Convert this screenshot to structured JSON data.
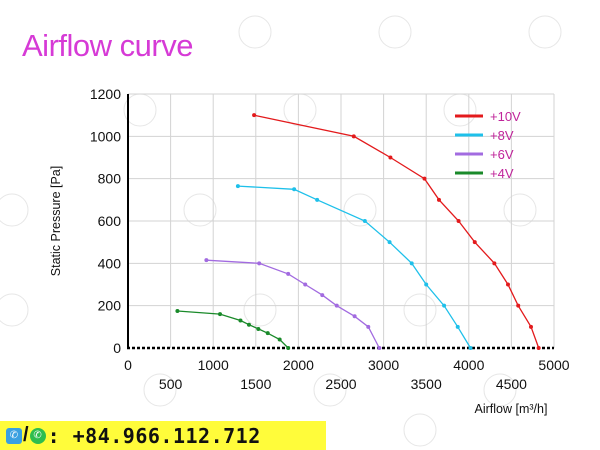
{
  "title": "Airflow curve",
  "contact": {
    "phone": ": +84.966.112.712",
    "separator": "/",
    "icons": [
      "viber-icon",
      "whatsapp-icon"
    ]
  },
  "chart_data": {
    "type": "line",
    "title": "Airflow curve",
    "xlabel": "Airflow [m³/h]",
    "ylabel": "Static Pressure [Pa]",
    "xlim": [
      0,
      5000
    ],
    "ylim": [
      0,
      1200
    ],
    "xticks": [
      0,
      500,
      1000,
      1500,
      2000,
      2500,
      3000,
      3500,
      4000,
      4500,
      5000
    ],
    "yticks": [
      0,
      200,
      400,
      600,
      800,
      1000,
      1200
    ],
    "grid": true,
    "legend_position": "top-right",
    "series": [
      {
        "name": "+10V",
        "color": "#e31a1c",
        "x": [
          1480,
          2650,
          3080,
          3480,
          3650,
          3880,
          4070,
          4300,
          4460,
          4580,
          4730,
          4820
        ],
        "y": [
          1100,
          1000,
          900,
          800,
          700,
          600,
          500,
          400,
          300,
          200,
          100,
          0
        ]
      },
      {
        "name": "+8V",
        "color": "#1ec0ea",
        "x": [
          1290,
          1950,
          2220,
          2780,
          3070,
          3330,
          3500,
          3710,
          3870,
          4020
        ],
        "y": [
          765,
          750,
          700,
          600,
          500,
          400,
          300,
          200,
          100,
          0
        ]
      },
      {
        "name": "+6V",
        "color": "#a26be0",
        "x": [
          920,
          1540,
          1880,
          2080,
          2280,
          2450,
          2660,
          2820,
          2950
        ],
        "y": [
          415,
          400,
          350,
          300,
          250,
          200,
          150,
          100,
          0
        ]
      },
      {
        "name": "+4V",
        "color": "#1a8a2a",
        "x": [
          580,
          1080,
          1320,
          1420,
          1530,
          1640,
          1780,
          1880
        ],
        "y": [
          175,
          160,
          130,
          110,
          90,
          70,
          40,
          0
        ]
      }
    ]
  }
}
